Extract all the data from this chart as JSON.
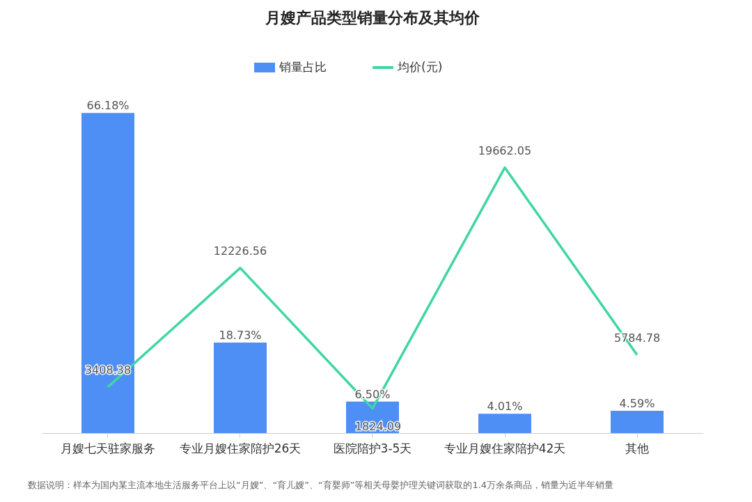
{
  "chart_data": {
    "type": "bar",
    "title": "月嫂产品类型销量分布及其均价",
    "categories": [
      "月嫂七天驻家服务",
      "专业月嫂住家陪护26天",
      "医院陪护3-5天",
      "专业月嫂住家陪护42天",
      "其他"
    ],
    "series": [
      {
        "name": "销量占比",
        "color": "#4d8ff5",
        "values": [
          66.18,
          18.73,
          6.5,
          4.01,
          4.59
        ],
        "value_labels": [
          "66.18%",
          "18.73%",
          "6.50%",
          "4.01%",
          "4.59%"
        ]
      },
      {
        "name": "均价(元)",
        "type": "line",
        "axis": "y2",
        "color": "#3fd6a3",
        "values": [
          3408.38,
          12226.56,
          1824.09,
          19662.05,
          5784.78
        ],
        "value_labels": [
          "3408.38",
          "12226.56",
          "1824.09",
          "19662.05",
          "5784.78"
        ]
      }
    ],
    "legend": "top",
    "annotations": [
      "数据说明：样本为国内某主流本地生活服务平台上以“月嫂”、“育儿嫂”、“育婴师”等相关母婴护理关键词获取的1.4万余条商品，销量为近半年销量"
    ]
  }
}
